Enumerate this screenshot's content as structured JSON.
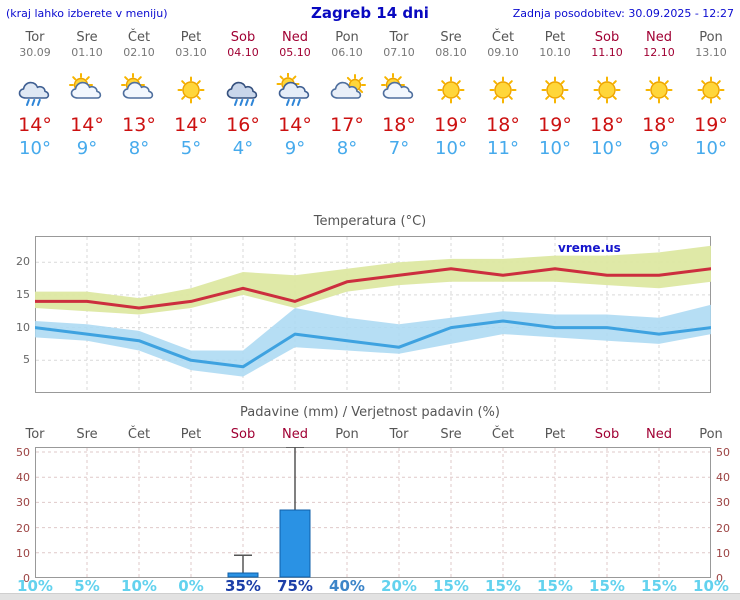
{
  "header": {
    "left_note": "(kraj lahko izberete v meniju)",
    "title": "Zagreb 14 dni",
    "updated": "Zadnja posodobitev: 30.09.2025 - 12:27"
  },
  "days": [
    {
      "name": "Tor",
      "date": "30.09",
      "weekend": false,
      "icon": "rain",
      "high": "14°",
      "low": "10°"
    },
    {
      "name": "Sre",
      "date": "01.10",
      "weekend": false,
      "icon": "partly",
      "high": "14°",
      "low": "9°"
    },
    {
      "name": "Čet",
      "date": "02.10",
      "weekend": false,
      "icon": "partly",
      "high": "13°",
      "low": "8°"
    },
    {
      "name": "Pet",
      "date": "03.10",
      "weekend": false,
      "icon": "sun",
      "high": "14°",
      "low": "5°"
    },
    {
      "name": "Sob",
      "date": "04.10",
      "weekend": true,
      "icon": "showers",
      "high": "16°",
      "low": "4°"
    },
    {
      "name": "Ned",
      "date": "05.10",
      "weekend": true,
      "icon": "rainsun",
      "high": "14°",
      "low": "9°"
    },
    {
      "name": "Pon",
      "date": "06.10",
      "weekend": false,
      "icon": "mostly",
      "high": "17°",
      "low": "8°"
    },
    {
      "name": "Tor",
      "date": "07.10",
      "weekend": false,
      "icon": "partly",
      "high": "18°",
      "low": "7°"
    },
    {
      "name": "Sre",
      "date": "08.10",
      "weekend": false,
      "icon": "sun",
      "high": "19°",
      "low": "10°"
    },
    {
      "name": "Čet",
      "date": "09.10",
      "weekend": false,
      "icon": "sun",
      "high": "18°",
      "low": "11°"
    },
    {
      "name": "Pet",
      "date": "10.10",
      "weekend": false,
      "icon": "sun",
      "high": "19°",
      "low": "10°"
    },
    {
      "name": "Sob",
      "date": "11.10",
      "weekend": true,
      "icon": "sun",
      "high": "18°",
      "low": "10°"
    },
    {
      "name": "Ned",
      "date": "12.10",
      "weekend": true,
      "icon": "sun",
      "high": "18°",
      "low": "9°"
    },
    {
      "name": "Pon",
      "date": "13.10",
      "weekend": false,
      "icon": "sun",
      "high": "19°",
      "low": "10°"
    }
  ],
  "chart_data": [
    {
      "type": "line",
      "title": "Temperatura (°C)",
      "watermark": "vreme.us",
      "x_labels": [
        "Tor",
        "Sre",
        "Čet",
        "Pet",
        "Sob",
        "Ned",
        "Pon",
        "Tor",
        "Sre",
        "Čet",
        "Pet",
        "Sob",
        "Ned",
        "Pon"
      ],
      "ylim": [
        0,
        24
      ],
      "yticks": [
        5,
        10,
        15,
        20
      ],
      "series": [
        {
          "name": "max_temp",
          "values": [
            14,
            14,
            13,
            14,
            16,
            14,
            17,
            18,
            19,
            18,
            19,
            18,
            18,
            19
          ]
        },
        {
          "name": "min_temp",
          "values": [
            10,
            9,
            8,
            5,
            4,
            9,
            8,
            7,
            10,
            11,
            10,
            10,
            9,
            10
          ]
        },
        {
          "name": "max_band_upper",
          "values": [
            15.5,
            15.5,
            14.5,
            16,
            18.5,
            18,
            19,
            20,
            20.5,
            20.5,
            21,
            21,
            21.5,
            22.5
          ]
        },
        {
          "name": "max_band_lower",
          "values": [
            13,
            12.5,
            12,
            13,
            15,
            13,
            15.5,
            16.5,
            17,
            17,
            17,
            16.5,
            16,
            17
          ]
        },
        {
          "name": "min_band_upper",
          "values": [
            11,
            10.5,
            9.5,
            6.5,
            6.5,
            13,
            11.5,
            10.5,
            11.5,
            12.5,
            12,
            12,
            11.5,
            13.5
          ]
        },
        {
          "name": "min_band_lower",
          "values": [
            8.5,
            8,
            6.5,
            3.5,
            2.5,
            7,
            6.5,
            6,
            7.5,
            9,
            8.5,
            8,
            7.5,
            9
          ]
        }
      ]
    },
    {
      "type": "bar",
      "title": "Padavine (mm) / Verjetnost padavin (%)",
      "categories": [
        "Tor",
        "Sre",
        "Čet",
        "Pet",
        "Sob",
        "Ned",
        "Pon",
        "Tor",
        "Sre",
        "Čet",
        "Pet",
        "Sob",
        "Ned",
        "Pon"
      ],
      "values": [
        0,
        0,
        0,
        0,
        2,
        27,
        0,
        0,
        0,
        0,
        0,
        0,
        0,
        0
      ],
      "whisker_max": [
        0,
        0,
        0,
        0,
        9,
        52,
        0,
        0,
        0,
        0,
        0,
        0,
        0,
        0
      ],
      "ylim": [
        0,
        52
      ],
      "yticks": [
        0,
        10,
        20,
        30,
        40,
        50
      ],
      "probabilities": [
        {
          "label": "10%",
          "tone": "light"
        },
        {
          "label": "5%",
          "tone": "light"
        },
        {
          "label": "10%",
          "tone": "light"
        },
        {
          "label": "0%",
          "tone": "light"
        },
        {
          "label": "35%",
          "tone": "dark"
        },
        {
          "label": "75%",
          "tone": "dark"
        },
        {
          "label": "40%",
          "tone": "medium"
        },
        {
          "label": "20%",
          "tone": "light"
        },
        {
          "label": "15%",
          "tone": "light"
        },
        {
          "label": "15%",
          "tone": "light"
        },
        {
          "label": "15%",
          "tone": "light"
        },
        {
          "label": "15%",
          "tone": "light"
        },
        {
          "label": "15%",
          "tone": "light"
        },
        {
          "label": "10%",
          "tone": "light"
        }
      ]
    }
  ],
  "colors": {
    "header_blue": "#0b0bd0",
    "day_gray": "#555555",
    "date_gray": "#777777",
    "weekend_red": "#a00033",
    "high_red": "#cc1111",
    "low_blue": "#46aaec",
    "line_max": "#cc2e3e",
    "line_min": "#3ea2e0",
    "band_max": "#dde8a2",
    "band_min": "#a9d8f2",
    "bar_fill": "#2a92e4",
    "bar_stroke": "#0f5fa8",
    "whisker": "#555555",
    "grid": "#d9d9d9",
    "grid_precip": "#dfc9c9",
    "chart_border": "#999999",
    "temp_tick": "#666666",
    "precip_tick": "#9c4343",
    "prob_light": "#63d2ee",
    "prob_medium": "#3d85c8",
    "prob_dark": "#1c3fa8",
    "watermark_blue": "#1515cc"
  }
}
